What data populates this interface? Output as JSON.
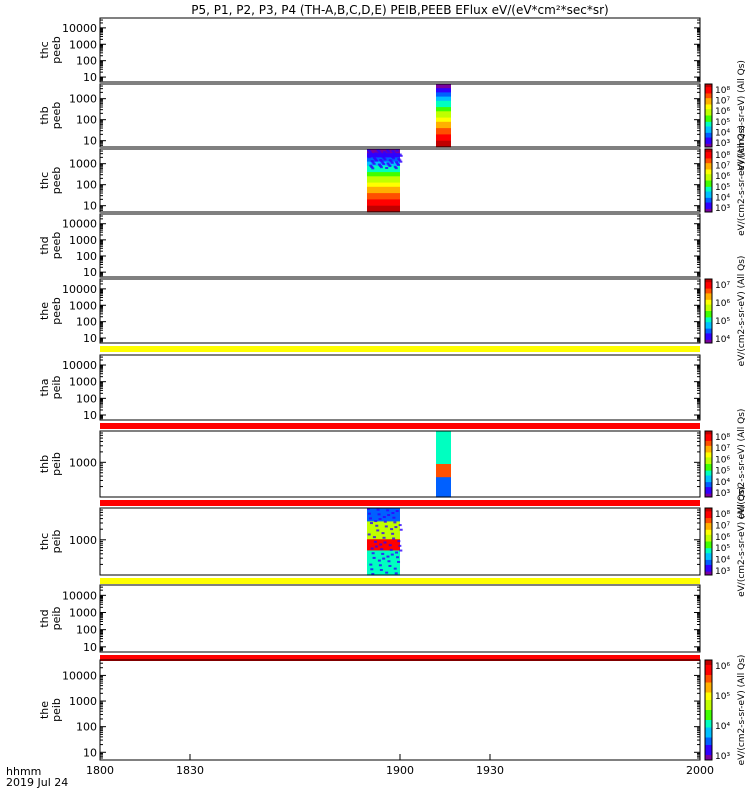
{
  "title": "P5, P1, P2, P3, P4 (TH-A,B,C,D,E) PEIB,PEEB EFlux eV/(eV*cm²*sec*sr)",
  "footer": {
    "time_label": "hhmm",
    "date_label": "2019 Jul 24"
  },
  "colors": {
    "rainbow": [
      "#ffffff",
      "#7a00a0",
      "#0000ff",
      "#00c0ff",
      "#00ff60",
      "#ffff00",
      "#ff8000",
      "#ff0000"
    ],
    "yellow_bar": "#ffff00",
    "red_bar": "#ff0000"
  },
  "chart_data": {
    "type": "heatmap",
    "x_axis": {
      "range": [
        1800,
        2000
      ],
      "tick_labels": [
        "1800",
        "1830",
        "1900",
        "1930",
        "2000"
      ],
      "tick_values": [
        1800,
        1830,
        1900,
        1930,
        2000
      ]
    },
    "panels": [
      {
        "name": "thc peeb",
        "ylabel": [
          "thc",
          "peeb"
        ],
        "yticks": [
          "10",
          "100",
          "1000",
          "10000"
        ],
        "ylim": [
          5,
          40000
        ],
        "log": true,
        "blocks": [],
        "colorbar": null,
        "status_bar": null
      },
      {
        "name": "thb peeb",
        "ylabel": [
          "thb",
          "peeb"
        ],
        "yticks": [
          "10",
          "100",
          "1000"
        ],
        "ylim": [
          5,
          5000
        ],
        "log": true,
        "blocks": [
          {
            "x_start": 1912,
            "x_end": 1917,
            "profile": "hi_energy_low_flux"
          }
        ],
        "colorbar": {
          "labels": [
            "10⁸",
            "10⁷",
            "10⁶",
            "10⁵",
            "10⁴",
            "10³"
          ],
          "title": "eV/(cm2-s-sr-eV) (All Qs)"
        },
        "status_bar": null
      },
      {
        "name": "thc peeb",
        "ylabel": [
          "thc",
          "peeb"
        ],
        "yticks": [
          "10",
          "100",
          "1000"
        ],
        "ylim": [
          5,
          5000
        ],
        "log": true,
        "blocks": [
          {
            "x_start": 1889,
            "x_end": 1900,
            "profile": "hi_energy_low_flux_noisy"
          }
        ],
        "colorbar": {
          "labels": [
            "10⁸",
            "10⁷",
            "10⁶",
            "10⁵",
            "10⁴",
            "10³"
          ],
          "title": "eV/(cm2-s-sr-eV) (All Qs)"
        },
        "status_bar": null
      },
      {
        "name": "thd peeb",
        "ylabel": [
          "thd",
          "peeb"
        ],
        "yticks": [
          "10",
          "100",
          "1000",
          "10000"
        ],
        "ylim": [
          5,
          40000
        ],
        "log": true,
        "blocks": [],
        "colorbar": null,
        "status_bar": null
      },
      {
        "name": "the peeb",
        "ylabel": [
          "the",
          "peeb"
        ],
        "yticks": [
          "10",
          "100",
          "1000",
          "10000"
        ],
        "ylim": [
          5,
          40000
        ],
        "log": true,
        "blocks": [],
        "colorbar": {
          "labels": [
            "10⁷",
            "10⁶",
            "10⁵",
            "10⁴"
          ],
          "title": "eV/(cm2-s-sr-eV) (All Qs)"
        },
        "status_bar": "yellow"
      },
      {
        "name": "tha peib",
        "ylabel": [
          "tha",
          "peib"
        ],
        "yticks": [
          "10",
          "100",
          "1000",
          "10000"
        ],
        "ylim": [
          5,
          40000
        ],
        "log": true,
        "blocks": [],
        "colorbar": null,
        "status_bar": "red"
      },
      {
        "name": "thb peib",
        "ylabel": [
          "thb",
          "peib"
        ],
        "yticks": [
          "1000"
        ],
        "ylim": [
          100,
          8000
        ],
        "log": true,
        "blocks": [
          {
            "x_start": 1912,
            "x_end": 1917,
            "profile": "ion_thb"
          }
        ],
        "colorbar": {
          "labels": [
            "10⁸",
            "10⁷",
            "10⁶",
            "10⁵",
            "10⁴",
            "10³"
          ],
          "title": "eV/(cm2-s-sr-eV) (All Qs)"
        },
        "status_bar": "red"
      },
      {
        "name": "thc peib",
        "ylabel": [
          "thc",
          "peib"
        ],
        "yticks": [
          "1000"
        ],
        "ylim": [
          100,
          8000
        ],
        "log": true,
        "blocks": [
          {
            "x_start": 1889,
            "x_end": 1900,
            "profile": "ion_thc"
          }
        ],
        "colorbar": {
          "labels": [
            "10⁸",
            "10⁷",
            "10⁶",
            "10⁵",
            "10⁴",
            "10³"
          ],
          "title": "eV/(cm2-s-sr-eV) (All Qs)"
        },
        "status_bar": "yellow"
      },
      {
        "name": "thd peib",
        "ylabel": [
          "thd",
          "peib"
        ],
        "yticks": [
          "10",
          "100",
          "1000",
          "10000"
        ],
        "ylim": [
          5,
          40000
        ],
        "log": true,
        "blocks": [],
        "colorbar": null,
        "status_bar": "red"
      },
      {
        "name": "the peib",
        "ylabel": [
          "the",
          "peib"
        ],
        "yticks": [
          "10",
          "100",
          "1000",
          "10000"
        ],
        "ylim": [
          5,
          40000
        ],
        "log": true,
        "blocks": [],
        "colorbar": {
          "labels": [
            "10⁶",
            "10⁵",
            "10⁴",
            "10³"
          ],
          "title": "eV/(cm2-s-sr-eV) (All Qs)"
        },
        "status_bar": null
      }
    ]
  }
}
